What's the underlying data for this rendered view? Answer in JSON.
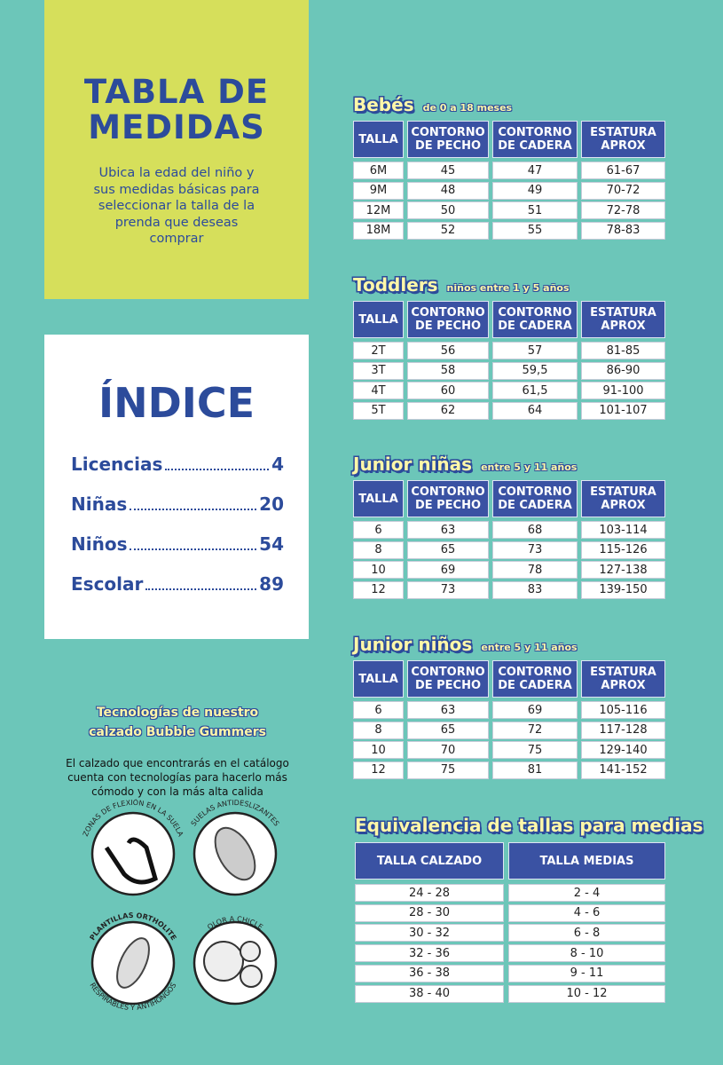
{
  "header": {
    "title": "TABLA DE MEDIDAS",
    "subtitle": "Ubica la edad del niño y sus medidas básicas para seleccionar la talla de la prenda que deseas comprar"
  },
  "index": {
    "title": "ÍNDICE",
    "entries": [
      {
        "label": "Licencias",
        "page": "4"
      },
      {
        "label": "Niñas",
        "page": "20"
      },
      {
        "label": "Niños",
        "page": "54"
      },
      {
        "label": "Escolar",
        "page": "89"
      }
    ]
  },
  "technologies": {
    "title": "Tecnologías de nuestro calzado Bubble Gummers",
    "description": "El calzado que encontrarás en el catálogo cuenta con tecnologías para hacerlo más cómodo y con la más alta calida",
    "features": [
      "ZONAS DE FLEXIÓN EN LA SUELA",
      "SUELAS ANTIDESLIZANTES",
      "PLANTILLAS ORTHOLITE",
      "RESPIRABLES Y ANTIHONGOS",
      "OLOR A CHICLE"
    ]
  },
  "size_tables": [
    {
      "title": "Bebés",
      "subtitle": "de 0 a 18 meses",
      "columns": [
        "TALLA",
        "CONTORNO DE PECHO",
        "CONTORNO DE CADERA",
        "ESTATURA APROX"
      ],
      "rows": [
        [
          "6M",
          "45",
          "47",
          "61-67"
        ],
        [
          "9M",
          "48",
          "49",
          "70-72"
        ],
        [
          "12M",
          "50",
          "51",
          "72-78"
        ],
        [
          "18M",
          "52",
          "55",
          "78-83"
        ]
      ]
    },
    {
      "title": "Toddlers",
      "subtitle": "niños entre 1 y 5 años",
      "columns": [
        "TALLA",
        "CONTORNO DE PECHO",
        "CONTORNO DE CADERA",
        "ESTATURA APROX"
      ],
      "rows": [
        [
          "2T",
          "56",
          "57",
          "81-85"
        ],
        [
          "3T",
          "58",
          "59,5",
          "86-90"
        ],
        [
          "4T",
          "60",
          "61,5",
          "91-100"
        ],
        [
          "5T",
          "62",
          "64",
          "101-107"
        ]
      ]
    },
    {
      "title": "Junior niñas",
      "subtitle": "entre 5 y 11 años",
      "columns": [
        "TALLA",
        "CONTORNO DE PECHO",
        "CONTORNO DE CADERA",
        "ESTATURA APROX"
      ],
      "rows": [
        [
          "6",
          "63",
          "68",
          "103-114"
        ],
        [
          "8",
          "65",
          "73",
          "115-126"
        ],
        [
          "10",
          "69",
          "78",
          "127-138"
        ],
        [
          "12",
          "73",
          "83",
          "139-150"
        ]
      ]
    },
    {
      "title": "Junior niños",
      "subtitle": "entre 5 y 11 años",
      "columns": [
        "TALLA",
        "CONTORNO DE PECHO",
        "CONTORNO DE CADERA",
        "ESTATURA APROX"
      ],
      "rows": [
        [
          "6",
          "63",
          "69",
          "105-116"
        ],
        [
          "8",
          "65",
          "72",
          "117-128"
        ],
        [
          "10",
          "70",
          "75",
          "129-140"
        ],
        [
          "12",
          "75",
          "81",
          "141-152"
        ]
      ]
    }
  ],
  "socks_table": {
    "title": "Equivalencia de tallas para medias",
    "columns": [
      "TALLA CALZADO",
      "TALLA MEDIAS"
    ],
    "rows": [
      [
        "24 - 28",
        "2 - 4"
      ],
      [
        "28 - 30",
        "4 - 6"
      ],
      [
        "30 - 32",
        "6 - 8"
      ],
      [
        "32 - 36",
        "8 - 10"
      ],
      [
        "36 - 38",
        "9 - 11"
      ],
      [
        "38 - 40",
        "10 - 12"
      ]
    ]
  }
}
